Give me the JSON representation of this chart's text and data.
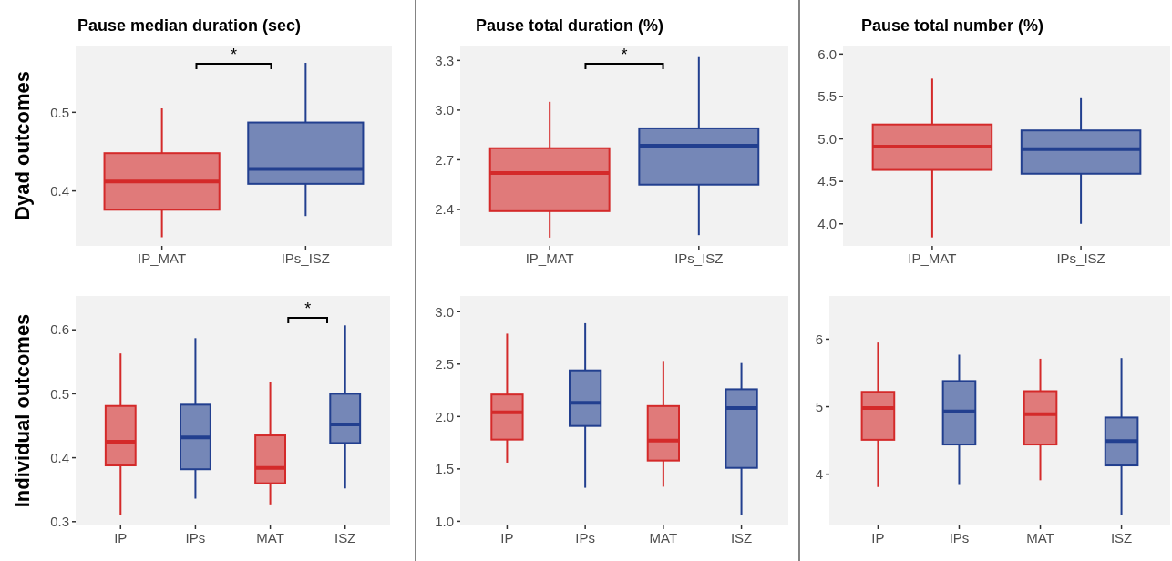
{
  "chart_data": [
    {
      "type": "box",
      "title": "Pause median duration (sec)",
      "ylabel": "Dyad outcomes",
      "categories": [
        "IP_MAT",
        "IPs_ISZ"
      ],
      "colors": [
        "#d42a2a",
        "#223f8f"
      ],
      "ylim": [
        0.33,
        0.585
      ],
      "yticks": [
        0.4,
        0.5
      ],
      "annotations": [
        "*"
      ],
      "boxes": [
        {
          "low": 0.341,
          "q1": 0.376,
          "median": 0.412,
          "q3": 0.448,
          "high": 0.505
        },
        {
          "low": 0.368,
          "q1": 0.409,
          "median": 0.428,
          "q3": 0.487,
          "high": 0.563
        }
      ]
    },
    {
      "type": "box",
      "title": "Pause total duration (%)",
      "categories": [
        "IP_MAT",
        "IPs_ISZ"
      ],
      "colors": [
        "#d42a2a",
        "#223f8f"
      ],
      "ylim": [
        2.18,
        3.39
      ],
      "yticks": [
        2.4,
        2.7,
        {
          "value": 3.0,
          "label": "3.0"
        },
        3.3
      ],
      "annotations": [
        "*"
      ],
      "boxes": [
        {
          "low": 2.23,
          "q1": 2.39,
          "median": 2.62,
          "q3": 2.77,
          "high": 3.05
        },
        {
          "low": 2.245,
          "q1": 2.55,
          "median": 2.785,
          "q3": 2.89,
          "high": 3.32
        }
      ]
    },
    {
      "type": "box",
      "title": "Pause total number (%)",
      "categories": [
        "IP_MAT",
        "IPs_ISZ"
      ],
      "colors": [
        "#d42a2a",
        "#223f8f"
      ],
      "ylim": [
        3.74,
        6.1
      ],
      "yticks": [
        {
          "value": 4,
          "label": "4.0"
        },
        4.5,
        {
          "value": 5,
          "label": "5.0"
        },
        5.5,
        {
          "value": 6,
          "label": "6.0"
        }
      ],
      "boxes": [
        {
          "low": 3.84,
          "q1": 4.635,
          "median": 4.91,
          "q3": 5.17,
          "high": 5.71
        },
        {
          "low": 4.0,
          "q1": 4.59,
          "median": 4.88,
          "q3": 5.1,
          "high": 5.48
        }
      ]
    },
    {
      "type": "box",
      "ylabel": "Individual outcomes",
      "categories": [
        "IP",
        "IPs",
        "MAT",
        "ISZ"
      ],
      "colors": [
        "#d42a2a",
        "#223f8f",
        "#d42a2a",
        "#223f8f"
      ],
      "ylim": [
        0.294,
        0.653
      ],
      "yticks": [
        0.3,
        0.4,
        0.5,
        0.6
      ],
      "annotations": [
        "*"
      ],
      "boxes": [
        {
          "low": 0.31,
          "q1": 0.388,
          "median": 0.425,
          "q3": 0.481,
          "high": 0.563
        },
        {
          "low": 0.336,
          "q1": 0.382,
          "median": 0.432,
          "q3": 0.483,
          "high": 0.587
        },
        {
          "low": 0.327,
          "q1": 0.36,
          "median": 0.384,
          "q3": 0.435,
          "high": 0.519
        },
        {
          "low": 0.352,
          "q1": 0.423,
          "median": 0.452,
          "q3": 0.5,
          "high": 0.607
        }
      ]
    },
    {
      "type": "box",
      "categories": [
        "IP",
        "IPs",
        "MAT",
        "ISZ"
      ],
      "colors": [
        "#d42a2a",
        "#223f8f",
        "#d42a2a",
        "#223f8f"
      ],
      "ylim": [
        0.96,
        3.15
      ],
      "yticks": [
        {
          "value": 1,
          "label": "1.0"
        },
        1.5,
        {
          "value": 2,
          "label": "2.0"
        },
        2.5,
        {
          "value": 3,
          "label": "3.0"
        }
      ],
      "boxes": [
        {
          "low": 1.56,
          "q1": 1.78,
          "median": 2.04,
          "q3": 2.21,
          "high": 2.79
        },
        {
          "low": 1.32,
          "q1": 1.91,
          "median": 2.13,
          "q3": 2.44,
          "high": 2.89
        },
        {
          "low": 1.33,
          "q1": 1.58,
          "median": 1.77,
          "q3": 2.1,
          "high": 2.53
        },
        {
          "low": 1.06,
          "q1": 1.51,
          "median": 2.08,
          "q3": 2.26,
          "high": 2.51
        }
      ]
    },
    {
      "type": "box",
      "categories": [
        "IP",
        "IPs",
        "MAT",
        "ISZ"
      ],
      "colors": [
        "#d42a2a",
        "#223f8f",
        "#d42a2a",
        "#223f8f"
      ],
      "ylim": [
        3.24,
        6.64
      ],
      "yticks": [
        4,
        5,
        6
      ],
      "boxes": [
        {
          "low": 3.81,
          "q1": 4.51,
          "median": 4.98,
          "q3": 5.22,
          "high": 5.95
        },
        {
          "low": 3.84,
          "q1": 4.44,
          "median": 4.93,
          "q3": 5.38,
          "high": 5.77
        },
        {
          "low": 3.91,
          "q1": 4.44,
          "median": 4.89,
          "q3": 5.23,
          "high": 5.71
        },
        {
          "low": 3.39,
          "q1": 4.13,
          "median": 4.49,
          "q3": 4.84,
          "high": 5.72
        }
      ]
    }
  ]
}
